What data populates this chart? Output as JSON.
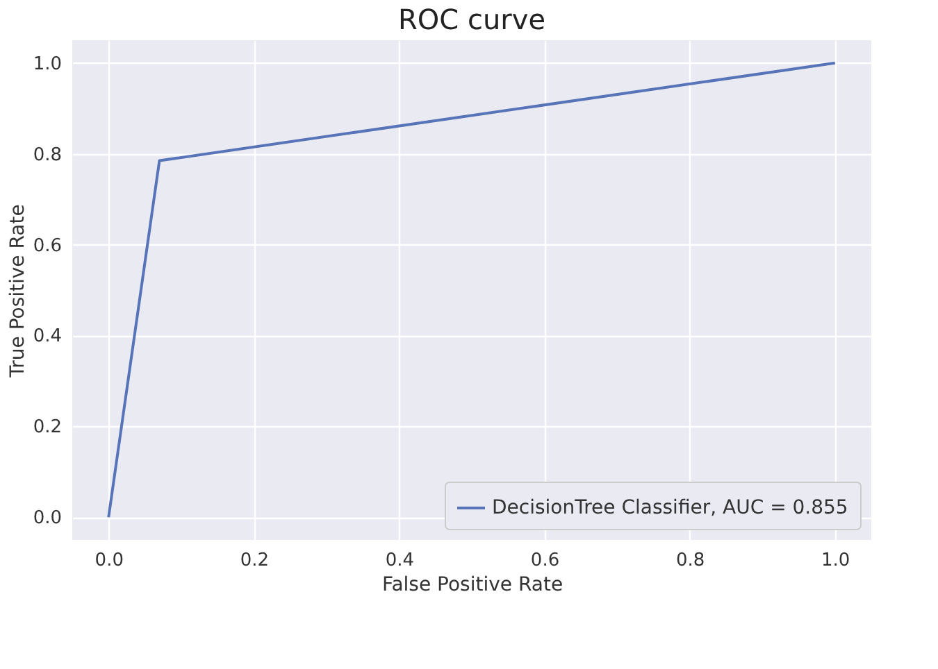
{
  "chart_data": {
    "type": "line",
    "title": "ROC curve",
    "xlabel": "False Positive Rate",
    "ylabel": "True Positive Rate",
    "series": [
      {
        "name": "DecisionTree Classifier, AUC = 0.855",
        "color": "#5874b8",
        "x": [
          0,
          0.07,
          1
        ],
        "values": [
          0,
          0.785,
          1
        ]
      }
    ],
    "xlim": [
      -0.05,
      1.05
    ],
    "ylim": [
      -0.05,
      1.05
    ],
    "xticks": [
      {
        "value": 0,
        "label": "0.0"
      },
      0.2,
      0.4,
      0.6,
      0.8,
      {
        "value": 1,
        "label": "1.0"
      }
    ],
    "yticks": [
      {
        "value": 0,
        "label": "0.0"
      },
      0.2,
      0.4,
      0.6,
      0.8,
      {
        "value": 1,
        "label": "1.0"
      }
    ],
    "grid": true,
    "legend": "bottom right",
    "marker": "none",
    "line_style": "solid"
  }
}
